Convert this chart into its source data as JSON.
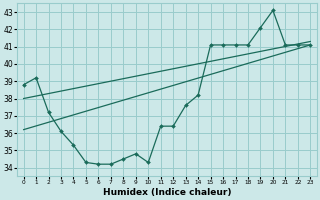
{
  "xlabel": "Humidex (Indice chaleur)",
  "bg_color": "#cce8e8",
  "grid_color": "#99cccc",
  "line_color": "#1a6b5a",
  "xlim": [
    -0.5,
    23.5
  ],
  "ylim": [
    33.5,
    43.5
  ],
  "yticks": [
    34,
    35,
    36,
    37,
    38,
    39,
    40,
    41,
    42,
    43
  ],
  "xticks": [
    0,
    1,
    2,
    3,
    4,
    5,
    6,
    7,
    8,
    9,
    10,
    11,
    12,
    13,
    14,
    15,
    16,
    17,
    18,
    19,
    20,
    21,
    22,
    23
  ],
  "series1_x": [
    0,
    1,
    2,
    3,
    4,
    5,
    6,
    7,
    8,
    9,
    10,
    11,
    12,
    13,
    14,
    15,
    16,
    17,
    18,
    19,
    20,
    21,
    22,
    23
  ],
  "series1_y": [
    38.8,
    39.2,
    37.2,
    36.1,
    35.3,
    34.3,
    34.2,
    34.2,
    34.5,
    34.8,
    34.3,
    36.4,
    36.4,
    37.6,
    38.2,
    41.1,
    41.1,
    41.1,
    41.1,
    42.1,
    43.1,
    41.1,
    41.1,
    41.1
  ],
  "series2_x": [
    0,
    23
  ],
  "series2_y": [
    38.0,
    41.3
  ],
  "series3_x": [
    0,
    23
  ],
  "series3_y": [
    36.2,
    41.1
  ]
}
